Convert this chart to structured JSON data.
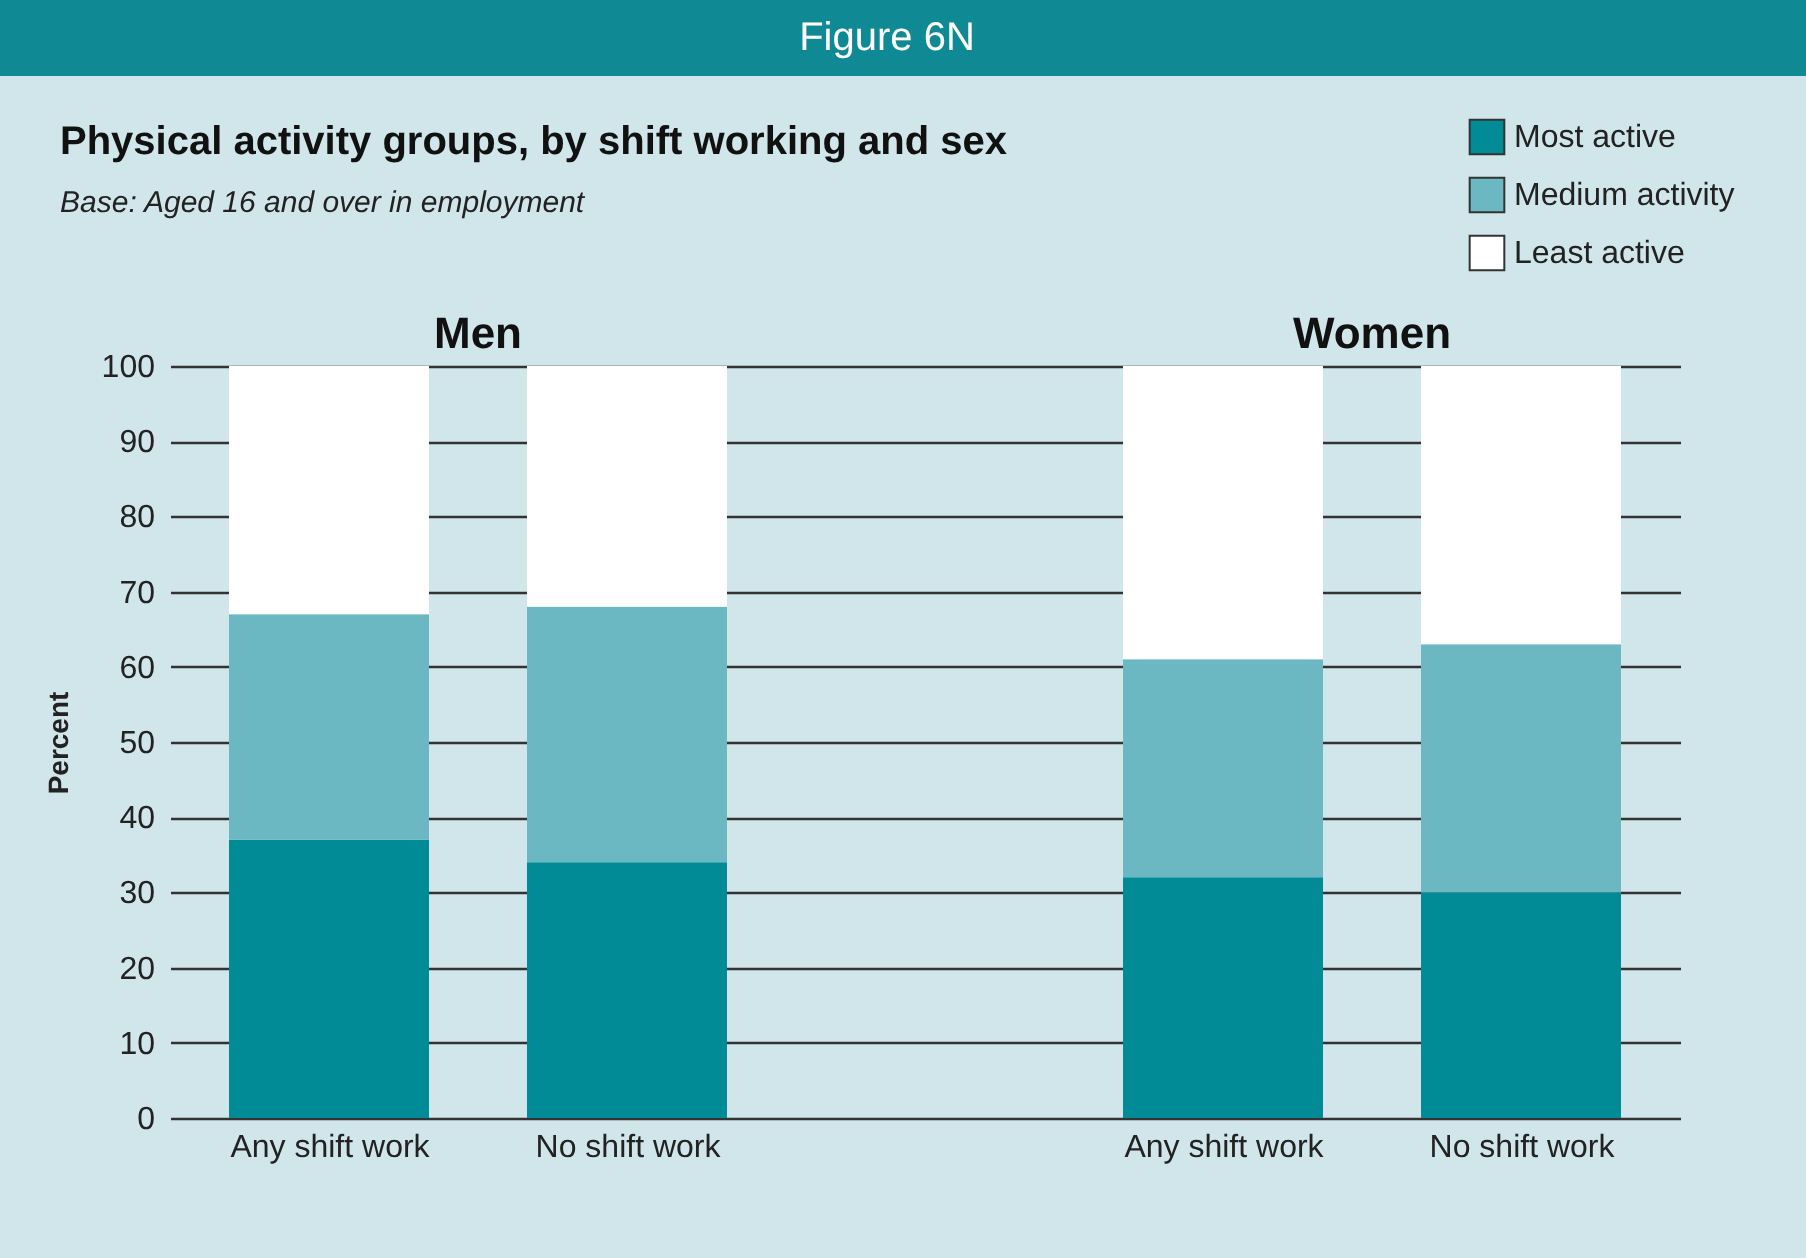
{
  "chart_data": {
    "type": "bar",
    "stacked": true,
    "title": "Physical activity groups, by shift working and sex",
    "subtitle": "Base: Aged 16 and over in employment",
    "ylabel": "Percent",
    "annotations": [
      "Figure 6N",
      "Men",
      "Women"
    ],
    "categories": [
      "Any shift work",
      "No shift work",
      null,
      "Any shift work",
      "No shift work"
    ],
    "series": [
      {
        "name": "Most active",
        "color": "#008b96",
        "values": [
          37,
          34,
          null,
          32,
          30
        ]
      },
      {
        "name": "Medium activity",
        "color": "#6cb8c2",
        "values": [
          30,
          34,
          null,
          29,
          33
        ]
      },
      {
        "name": "Least active",
        "color": "#ffffff",
        "values": [
          33,
          32,
          null,
          39,
          37
        ]
      }
    ],
    "ylim": [
      0,
      100
    ],
    "yticks": [
      0,
      10,
      20,
      30,
      40,
      50,
      60,
      70,
      80,
      90,
      100
    ],
    "grid": "y",
    "legend": "top right"
  }
}
